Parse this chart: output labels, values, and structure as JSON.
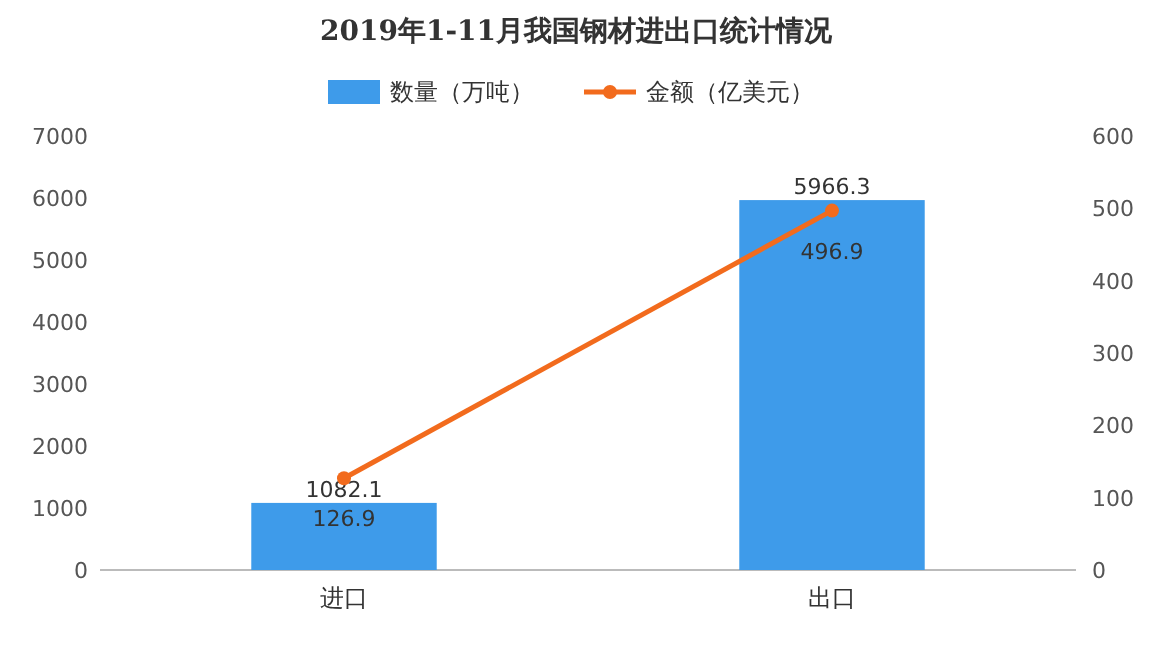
{
  "chart_data": {
    "type": "bar",
    "title": "2019年1-11月我国钢材进出口统计情况",
    "categories": [
      "进口",
      "出口"
    ],
    "series": [
      {
        "name": "数量（万吨）",
        "color": "#3e9bea",
        "values": [
          1082.1,
          5966.3
        ]
      },
      {
        "name": "金额（亿美元）",
        "type": "line",
        "axis": "y2",
        "color": "#f26b1d",
        "values": [
          126.9,
          496.9
        ]
      }
    ],
    "ylim": [
      0,
      7000
    ],
    "yticks": [
      0,
      1000,
      2000,
      3000,
      4000,
      5000,
      6000,
      7000
    ],
    "y2lim": [
      0,
      600
    ],
    "y2ticks": [
      0,
      100,
      200,
      300,
      400,
      500,
      600
    ],
    "legend": "top",
    "data_labels": true,
    "marker": "circle",
    "grid": false
  }
}
